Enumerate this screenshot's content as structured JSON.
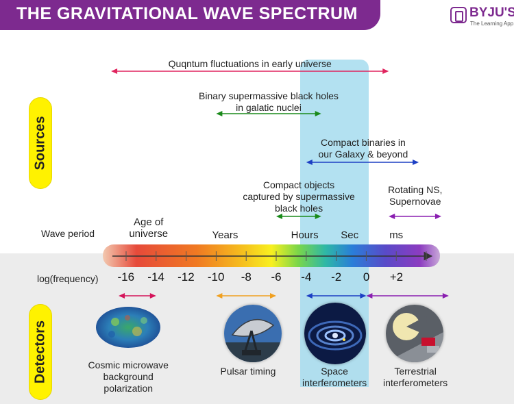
{
  "title": "THE GRAVITATIONAL WAVE SPECTRUM",
  "brand": {
    "name": "BYJU'S",
    "tagline": "The Learning App"
  },
  "sections": {
    "sources": "Sources",
    "detectors": "Detectors"
  },
  "axis": {
    "wave_period_label": "Wave period",
    "log_frequency_label": "log(frequency)",
    "period_labels": [
      "Age of\nuniverse",
      "Years",
      "Hours",
      "Sec",
      "ms"
    ],
    "tick_labels": [
      "-16",
      "-14",
      "-12",
      "-10",
      "-8",
      "-6",
      "-4",
      "-2",
      "0",
      "+2"
    ]
  },
  "sources": [
    {
      "label": "Quqntum fluctuations in early universe",
      "range": [
        -17,
        1.5
      ],
      "color": "#e0245e"
    },
    {
      "label": "Binary supermassive black holes\nin galatic nuclei",
      "range": [
        -10,
        -3
      ],
      "color": "#1a8a1a"
    },
    {
      "label": "Compact binaries in\nour Galaxy & beyond",
      "range": [
        -4,
        3.5
      ],
      "color": "#1c3fc4"
    },
    {
      "label": "Compact objects\ncaptured by supermassive\nblack holes",
      "range": [
        -6,
        -3
      ],
      "color": "#1a8a1a"
    },
    {
      "label": "Rotating NS,\nSupernovae",
      "range": [
        1.5,
        5
      ],
      "color": "#8a1fb0"
    }
  ],
  "detectors": [
    {
      "label": "Cosmic microwave\nbackground\npolarization",
      "range": [
        -16.5,
        -14
      ],
      "color": "#d4145a",
      "icon": "cmb-map-icon"
    },
    {
      "label": "Pulsar timing",
      "range": [
        -10,
        -6
      ],
      "color": "#f0a020",
      "icon": "radio-telescope-icon"
    },
    {
      "label": "Space\ninterferometers",
      "range": [
        -4,
        0
      ],
      "color": "#1c3fc4",
      "icon": "spiral-galaxy-icon"
    },
    {
      "label": "Terrestrial\ninterferometers",
      "range": [
        0,
        5.5
      ],
      "color": "#8a1fb0",
      "icon": "ground-detector-icon"
    }
  ],
  "colors": {
    "title_bg": "#7d2a8f",
    "highlight": "#a6dcee",
    "pill": "#fff200",
    "band": "#ececec"
  }
}
